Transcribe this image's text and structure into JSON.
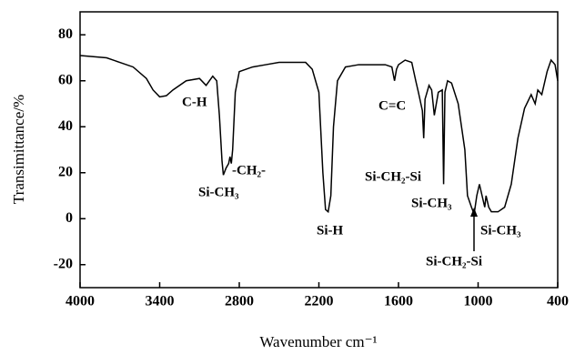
{
  "chart_data": {
    "type": "line",
    "x_label": "Wavenumber cm⁻¹",
    "y_label": "Transimittance/%",
    "x": [
      4000,
      3900,
      3800,
      3700,
      3600,
      3500,
      3450,
      3400,
      3350,
      3300,
      3200,
      3100,
      3050,
      3000,
      2970,
      2950,
      2930,
      2920,
      2900,
      2880,
      2870,
      2860,
      2850,
      2830,
      2800,
      2700,
      2600,
      2500,
      2400,
      2300,
      2250,
      2200,
      2170,
      2150,
      2130,
      2110,
      2090,
      2060,
      2000,
      1900,
      1800,
      1700,
      1650,
      1630,
      1615,
      1600,
      1550,
      1500,
      1470,
      1450,
      1420,
      1410,
      1400,
      1370,
      1350,
      1330,
      1300,
      1270,
      1260,
      1250,
      1230,
      1200,
      1150,
      1100,
      1080,
      1050,
      1030,
      1010,
      990,
      970,
      950,
      940,
      920,
      900,
      850,
      800,
      750,
      700,
      650,
      600,
      570,
      550,
      520,
      480,
      450,
      420,
      400
    ],
    "values": [
      71,
      70.5,
      70,
      68,
      66,
      61,
      56,
      53,
      53.5,
      56,
      60,
      61,
      58,
      62,
      60,
      45,
      25,
      19,
      22,
      24,
      27,
      24,
      30,
      55,
      64,
      66,
      67,
      68,
      68,
      68,
      65,
      55,
      20,
      4,
      3,
      10,
      40,
      60,
      66,
      67,
      67,
      67,
      66,
      60,
      65,
      67,
      69,
      68,
      60,
      55,
      47,
      35,
      52,
      58,
      56,
      45,
      55,
      56,
      15,
      55,
      60,
      59,
      50,
      30,
      10,
      5,
      2,
      10,
      15,
      10,
      5,
      10,
      5,
      3,
      3,
      5,
      15,
      35,
      48,
      54,
      50,
      56,
      54,
      64,
      69,
      67,
      60
    ],
    "color": "#000000",
    "xlim": [
      4000,
      400
    ],
    "xticks": [
      4000,
      3400,
      2800,
      2200,
      1600,
      1000,
      400
    ],
    "ylim": [
      -30,
      90
    ],
    "yticks": [
      -20,
      0,
      20,
      40,
      60,
      80
    ],
    "annotations": [
      "C-H",
      "-CH₂-",
      "Si-CH₃",
      "Si-H",
      "C=C",
      "Si-CH₂-Si",
      "Si-CH₃",
      "Si-CH₃",
      "Si-CH₂-Si"
    ]
  }
}
